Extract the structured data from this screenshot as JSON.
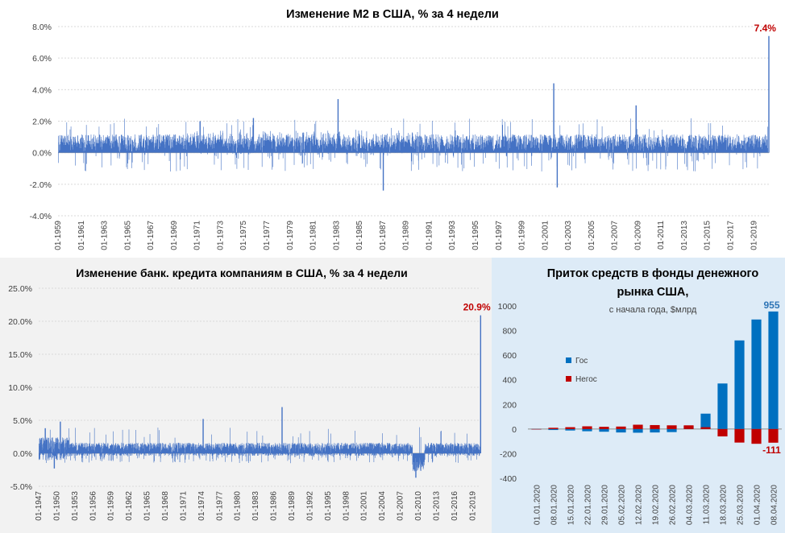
{
  "chart_data": [
    {
      "id": "m2",
      "type": "bar",
      "title": "Изменение М2 в США, % за 4 недели",
      "ylim": [
        -4,
        8
      ],
      "yticks": [
        -4,
        -2,
        0,
        2,
        4,
        6,
        8
      ],
      "ytick_labels": [
        "-4.0%",
        "-2.0%",
        "0.0%",
        "2.0%",
        "4.0%",
        "6.0%",
        "8.0%"
      ],
      "xlabels": [
        "01-1959",
        "01-1961",
        "01-1963",
        "01-1965",
        "01-1967",
        "01-1969",
        "01-1971",
        "01-1973",
        "01-1975",
        "01-1977",
        "01-1979",
        "01-1981",
        "01-1983",
        "01-1985",
        "01-1987",
        "01-1989",
        "01-1991",
        "01-1993",
        "01-1995",
        "01-1997",
        "01-1999",
        "01-2001",
        "01-2003",
        "01-2005",
        "01-2007",
        "01-2009",
        "01-2011",
        "01-2013",
        "01-2015",
        "01-2017",
        "01-2019"
      ],
      "x_start_year": 1959,
      "x_end_year": 2020.3,
      "series_color": "#4472c4",
      "grid": true,
      "highlights": [
        {
          "year": 1971.2,
          "value": 2.0
        },
        {
          "year": 1975.8,
          "value": 2.2
        },
        {
          "year": 1983.1,
          "value": 3.4
        },
        {
          "year": 1987.0,
          "value": -2.4
        },
        {
          "year": 2001.7,
          "value": 4.4
        },
        {
          "year": 2002.0,
          "value": -2.2
        },
        {
          "year": 2008.8,
          "value": 3.0
        },
        {
          "year": 2020.25,
          "value": 7.4
        }
      ],
      "last_value_label": "7.4%"
    },
    {
      "id": "credit",
      "type": "bar",
      "title": "Изменение банк. кредита компаниям в США, % за 4 недели",
      "ylim": [
        -5,
        25
      ],
      "yticks": [
        -5,
        0,
        5,
        10,
        15,
        20,
        25
      ],
      "ytick_labels": [
        "-5.0%",
        "0.0%",
        "5.0%",
        "10.0%",
        "15.0%",
        "20.0%",
        "25.0%"
      ],
      "xlabels": [
        "01-1947",
        "01-1950",
        "01-1953",
        "01-1956",
        "01-1959",
        "01-1962",
        "01-1965",
        "01-1968",
        "01-1971",
        "01-1974",
        "01-1977",
        "01-1980",
        "01-1983",
        "01-1986",
        "01-1989",
        "01-1992",
        "01-1995",
        "01-1998",
        "01-2001",
        "01-2004",
        "01-2007",
        "01-2010",
        "01-2013",
        "01-2016",
        "01-2019"
      ],
      "x_start_year": 1947,
      "x_end_year": 2020.3,
      "series_color": "#4472c4",
      "grid": true,
      "highlights": [
        {
          "year": 1948.0,
          "value": 3.8
        },
        {
          "year": 1950.5,
          "value": 4.8
        },
        {
          "year": 1949.5,
          "value": -2.3
        },
        {
          "year": 1974.2,
          "value": 5.2
        },
        {
          "year": 1987.3,
          "value": 7.0
        },
        {
          "year": 2009.5,
          "value": -3.7
        },
        {
          "year": 2020.25,
          "value": 20.9
        }
      ],
      "last_value_label": "20.9%"
    },
    {
      "id": "mmf",
      "type": "bar",
      "title": "Приток средств в фонды денежного рынка США,",
      "subtitle": "с начала года, $млрд",
      "ylim": [
        -400,
        1000
      ],
      "yticks": [
        -400,
        -200,
        0,
        200,
        400,
        600,
        800,
        1000
      ],
      "ytick_labels": [
        "-400",
        "-200",
        "0",
        "200",
        "400",
        "600",
        "800",
        "1000"
      ],
      "categories": [
        "01.01.2020",
        "08.01.2020",
        "15.01.2020",
        "22.01.2020",
        "29.01.2020",
        "05.02.2020",
        "12.02.2020",
        "19.02.2020",
        "26.02.2020",
        "04.03.2020",
        "11.03.2020",
        "18.03.2020",
        "25.03.2020",
        "01.04.2020",
        "08.04.2020"
      ],
      "series": [
        {
          "name": "Гос",
          "color": "#0070c0",
          "values": [
            0,
            -8,
            -12,
            -18,
            -22,
            -28,
            -30,
            -28,
            -25,
            25,
            125,
            370,
            720,
            890,
            955
          ]
        },
        {
          "name": "Негос",
          "color": "#c00000",
          "values": [
            0,
            10,
            15,
            22,
            18,
            20,
            35,
            32,
            30,
            30,
            15,
            -60,
            -110,
            -120,
            -111
          ]
        }
      ],
      "legend": "left",
      "value_labels": [
        {
          "series": "Гос",
          "category": "08.04.2020",
          "text": "955",
          "color": "#2e75b6"
        },
        {
          "series": "Негос",
          "category": "08.04.2020",
          "text": "-111",
          "color": "#c00000"
        }
      ]
    }
  ]
}
